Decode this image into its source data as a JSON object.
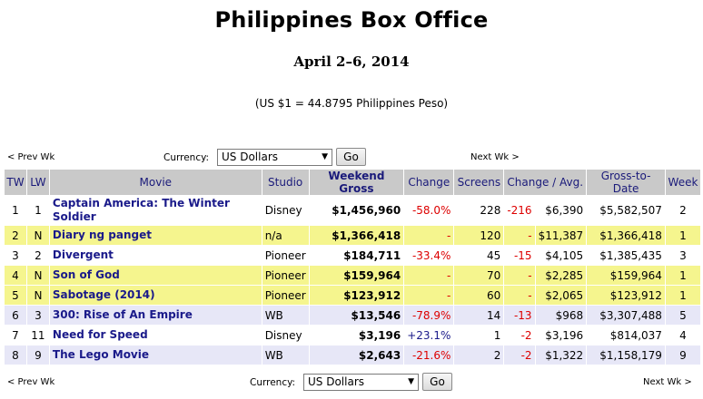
{
  "header": {
    "title": "Philippines Box Office",
    "date_range": "April 2–6, 2014",
    "exchange_rate": "(US $1 = 44.8795 Philippines Peso)"
  },
  "nav": {
    "prev_label": "< Prev Wk",
    "next_label": "Next Wk >",
    "currency_label": "Currency:",
    "currency_value": "US Dollars",
    "go_label": "Go"
  },
  "table": {
    "columns": [
      "TW",
      "LW",
      "Movie",
      "Studio",
      "Weekend Gross",
      "Change",
      "Screens",
      "Change / Avg.",
      "Gross-to-Date",
      "Week"
    ],
    "rows": [
      {
        "tw": "1",
        "lw": "1",
        "movie": "Captain America: The Winter Soldier",
        "studio": "Disney",
        "gross": "$1,456,960",
        "change": "-58.0%",
        "screens": "228",
        "screen_change": "-216",
        "avg": "$6,390",
        "to_date": "$5,582,507",
        "week": "2"
      },
      {
        "tw": "2",
        "lw": "N",
        "movie": "Diary ng panget",
        "studio": "n/a",
        "gross": "$1,366,418",
        "change": "-",
        "screens": "120",
        "screen_change": "-",
        "avg": "$11,387",
        "to_date": "$1,366,418",
        "week": "1"
      },
      {
        "tw": "3",
        "lw": "2",
        "movie": "Divergent",
        "studio": "Pioneer",
        "gross": "$184,711",
        "change": "-33.4%",
        "screens": "45",
        "screen_change": "-15",
        "avg": "$4,105",
        "to_date": "$1,385,435",
        "week": "3"
      },
      {
        "tw": "4",
        "lw": "N",
        "movie": "Son of God",
        "studio": "Pioneer",
        "gross": "$159,964",
        "change": "-",
        "screens": "70",
        "screen_change": "-",
        "avg": "$2,285",
        "to_date": "$159,964",
        "week": "1"
      },
      {
        "tw": "5",
        "lw": "N",
        "movie": "Sabotage (2014)",
        "studio": "Pioneer",
        "gross": "$123,912",
        "change": "-",
        "screens": "60",
        "screen_change": "-",
        "avg": "$2,065",
        "to_date": "$123,912",
        "week": "1"
      },
      {
        "tw": "6",
        "lw": "3",
        "movie": "300: Rise of An Empire",
        "studio": "WB",
        "gross": "$13,546",
        "change": "-78.9%",
        "screens": "14",
        "screen_change": "-13",
        "avg": "$968",
        "to_date": "$3,307,488",
        "week": "5"
      },
      {
        "tw": "7",
        "lw": "11",
        "movie": "Need for Speed",
        "studio": "Disney",
        "gross": "$3,196",
        "change": "+23.1%",
        "screens": "1",
        "screen_change": "-2",
        "avg": "$3,196",
        "to_date": "$814,037",
        "week": "4"
      },
      {
        "tw": "8",
        "lw": "9",
        "movie": "The Lego Movie",
        "studio": "WB",
        "gross": "$2,643",
        "change": "-21.6%",
        "screens": "2",
        "screen_change": "-2",
        "avg": "$1,322",
        "to_date": "$1,158,179",
        "week": "9"
      }
    ]
  },
  "colors": {
    "new_release_row": "#f5f58e",
    "alt_row": "#e7e7f7",
    "header_bg": "#c9c9c9",
    "negative": "#dd0000",
    "link": "#1a1a8a"
  }
}
